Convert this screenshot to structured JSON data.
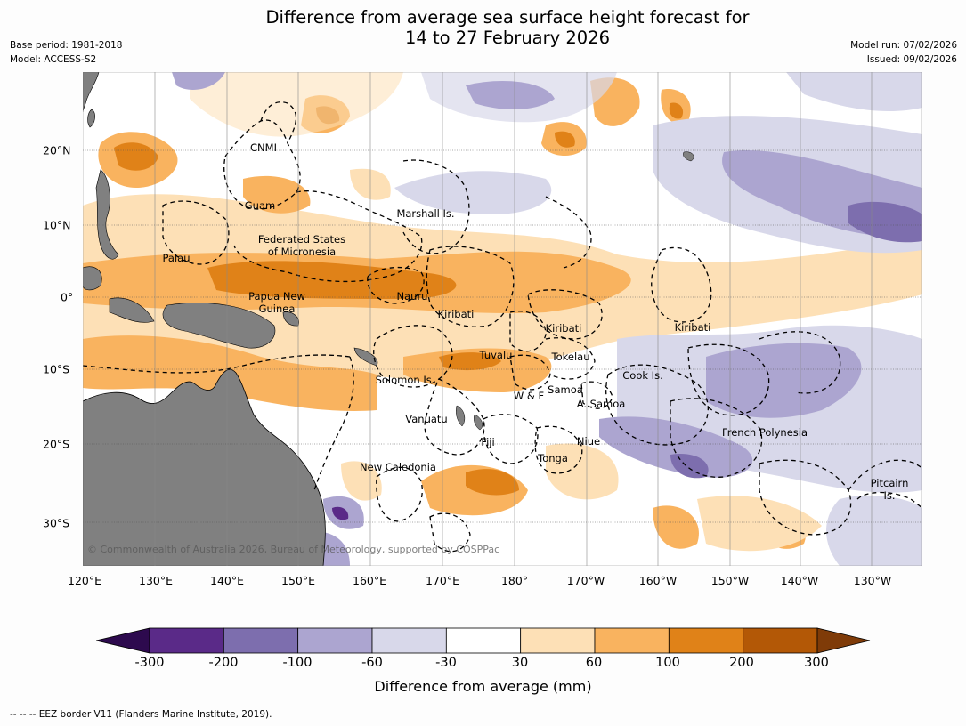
{
  "title": {
    "line1": "Difference from average sea surface height forecast for",
    "line2": "14 to 27 February 2026"
  },
  "meta": {
    "base_period": "Base period: 1981-2018",
    "model": "Model: ACCESS-S2",
    "model_run": "Model run: 07/02/2026",
    "issued": "Issued: 09/02/2026"
  },
  "map": {
    "lon_labels": [
      "120°E",
      "130°E",
      "140°E",
      "150°E",
      "160°E",
      "170°E",
      "180°",
      "170°W",
      "160°W",
      "150°W",
      "140°W",
      "130°W"
    ],
    "lat_labels": [
      "20°N",
      "10°N",
      "0°",
      "10°S",
      "20°S",
      "30°S"
    ],
    "regions": [
      {
        "id": "cnmi",
        "text": "CNMI"
      },
      {
        "id": "guam",
        "text": "Guam"
      },
      {
        "id": "marshall",
        "text": "Marshall Is."
      },
      {
        "id": "fsm1",
        "text": "Federated States"
      },
      {
        "id": "fsm2",
        "text": "of Micronesia"
      },
      {
        "id": "palau",
        "text": "Palau"
      },
      {
        "id": "png1",
        "text": "Papua New"
      },
      {
        "id": "png2",
        "text": "Guinea"
      },
      {
        "id": "nauru",
        "text": "Nauru"
      },
      {
        "id": "kiribati1",
        "text": "Kiribati"
      },
      {
        "id": "kiribati2",
        "text": "Kiribati"
      },
      {
        "id": "kiribati3",
        "text": "Kiribati"
      },
      {
        "id": "tuvalu",
        "text": "Tuvalu"
      },
      {
        "id": "tokelau",
        "text": "Tokelau"
      },
      {
        "id": "solomon",
        "text": "Solomon Is."
      },
      {
        "id": "wf",
        "text": "W & F"
      },
      {
        "id": "samoa",
        "text": "Samoa"
      },
      {
        "id": "asamoa",
        "text": "A. Samoa"
      },
      {
        "id": "cook",
        "text": "Cook Is."
      },
      {
        "id": "vanuatu",
        "text": "Vanuatu"
      },
      {
        "id": "fiji",
        "text": "Fiji"
      },
      {
        "id": "niue",
        "text": "Niue"
      },
      {
        "id": "fp",
        "text": "French Polynesia"
      },
      {
        "id": "tonga",
        "text": "Tonga"
      },
      {
        "id": "nc",
        "text": "New Caledonia"
      },
      {
        "id": "pitcairn1",
        "text": "Pitcairn"
      },
      {
        "id": "pitcairn2",
        "text": "Is."
      }
    ],
    "copyright": "© Commonwealth of Australia 2026, Bureau of Meteorology, supported by COSPPac"
  },
  "colorbar": {
    "ticks": [
      "-300",
      "-200",
      "-100",
      "-60",
      "-30",
      "30",
      "60",
      "100",
      "200",
      "300"
    ],
    "colors": {
      "below": "#2d0a4e",
      "bins": [
        "#5a2a88",
        "#7d6eae",
        "#aca5d0",
        "#d8d8ea",
        "#ffffff",
        "#fde0b6",
        "#f9b35f",
        "#e08218",
        "#b35806"
      ],
      "above": "#7f3b08"
    },
    "label": "Difference from average (mm)"
  },
  "footnote": "--  --  -- EEZ border V11 (Flanders Marine Institute, 2019)."
}
